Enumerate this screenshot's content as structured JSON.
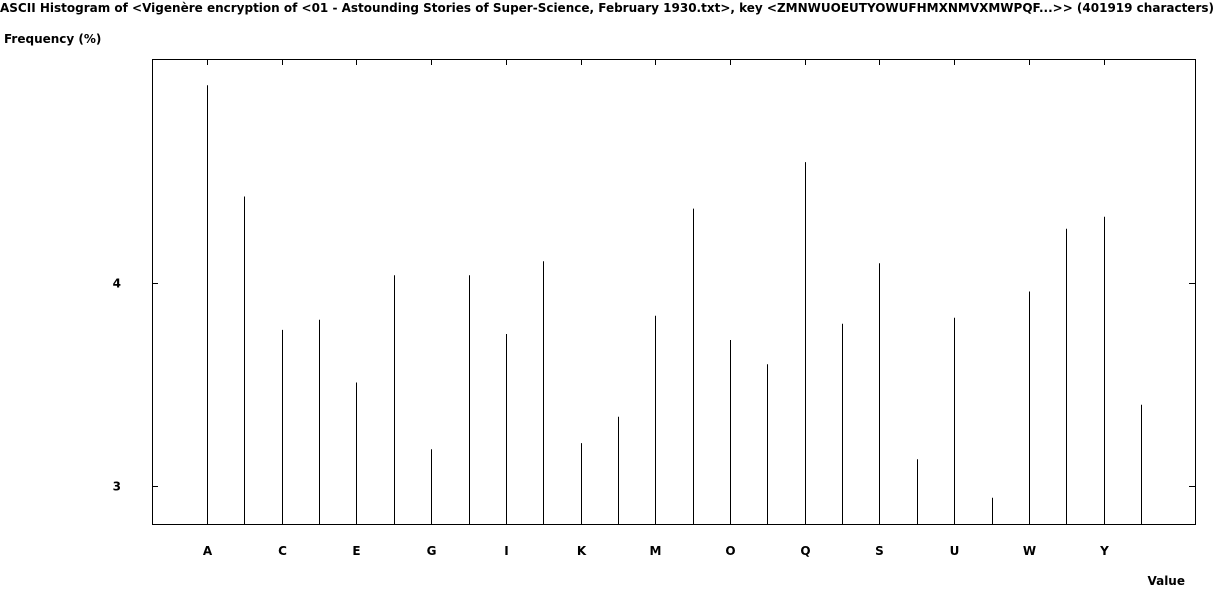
{
  "chart_data": {
    "type": "bar",
    "title": "ASCII Histogram of <Vigenère encryption of <01 - Astounding Stories of Super-Science, February 1930.txt>, key <ZMNWUOEUTYOWUFHMXNMVXMWPQF...>> (401919 characters)",
    "xlabel": "Value",
    "ylabel": "Frequency (%)",
    "categories": [
      "A",
      "B",
      "C",
      "D",
      "E",
      "F",
      "G",
      "H",
      "I",
      "J",
      "K",
      "L",
      "M",
      "N",
      "O",
      "P",
      "Q",
      "R",
      "S",
      "T",
      "U",
      "V",
      "W",
      "X",
      "Y",
      "Z"
    ],
    "tick_labels": [
      "A",
      "C",
      "E",
      "G",
      "I",
      "K",
      "M",
      "O",
      "Q",
      "S",
      "U",
      "W",
      "Y"
    ],
    "values": [
      4.98,
      4.43,
      3.77,
      3.82,
      3.51,
      4.04,
      3.18,
      4.04,
      3.75,
      4.11,
      3.21,
      3.34,
      3.84,
      4.37,
      3.72,
      3.6,
      4.6,
      3.8,
      4.1,
      3.13,
      3.83,
      2.94,
      3.96,
      4.27,
      4.33,
      3.4
    ],
    "yticks": [
      3,
      4
    ],
    "ylim": [
      2.81,
      5.11
    ],
    "grid": false
  }
}
